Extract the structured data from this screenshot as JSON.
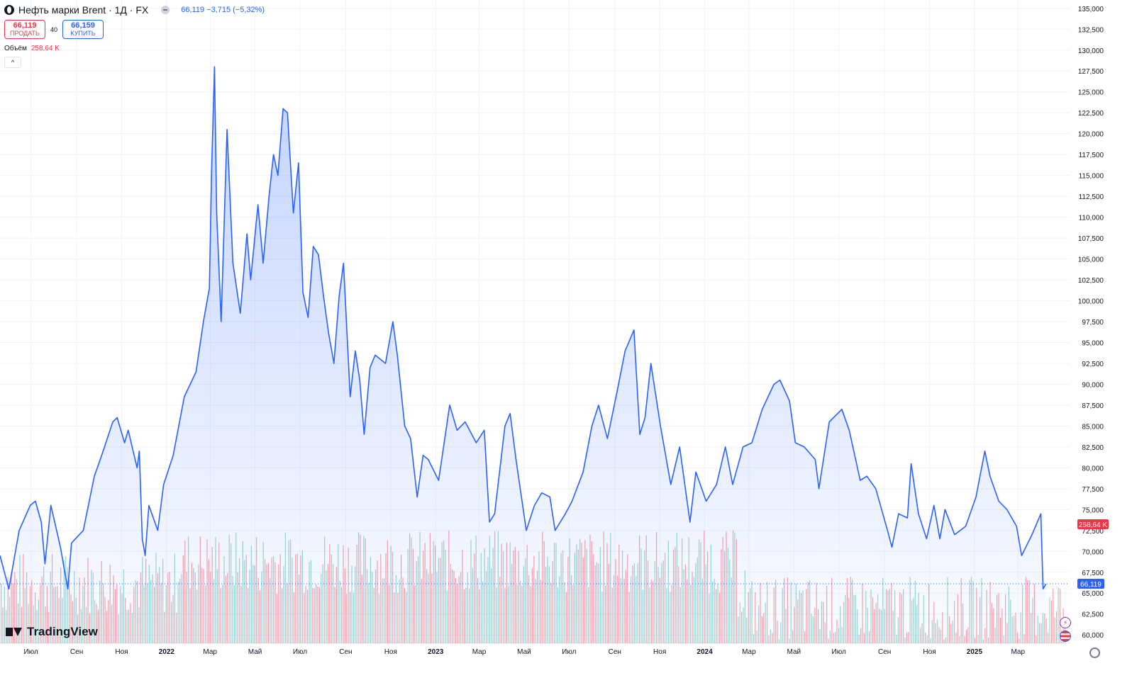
{
  "header": {
    "title": "Нефть марки Brent · 1Д · FX",
    "last": "66,119",
    "change": "−3,715 (−5,32%)",
    "sell_price": "66,119",
    "sell_label": "ПРОДАТЬ",
    "buy_price": "66,159",
    "buy_label": "КУПИТЬ",
    "spread": "40",
    "volume_label": "Объём",
    "volume_value": "258,64 K"
  },
  "brand": {
    "name": "TradingView"
  },
  "colors": {
    "line": "#2962ff",
    "vol_up": "#26a69a",
    "vol_down": "#f23645"
  },
  "icons": {
    "flash": "lightning-icon",
    "flag": "us-flag-icon",
    "settings": "gear-icon",
    "collapse": "chevron-up-icon"
  },
  "chart_data": {
    "type": "area",
    "ylim": [
      59000,
      136000
    ],
    "y_ticks": [
      "60,000",
      "62,500",
      "65,000",
      "67,500",
      "70,000",
      "72,500",
      "75,000",
      "77,500",
      "80,000",
      "82,500",
      "85,000",
      "87,500",
      "90,000",
      "92,500",
      "95,000",
      "97,500",
      "100,000",
      "102,500",
      "105,000",
      "107,500",
      "110,000",
      "112,500",
      "115,000",
      "117,500",
      "120,000",
      "122,500",
      "125,000",
      "127,500",
      "130,000",
      "132,500",
      "135,000"
    ],
    "y_tick_values": [
      60000,
      62500,
      65000,
      67500,
      70000,
      72500,
      75000,
      77500,
      80000,
      82500,
      85000,
      87500,
      90000,
      92500,
      95000,
      97500,
      100000,
      102500,
      105000,
      107500,
      110000,
      112500,
      115000,
      117500,
      120000,
      122500,
      125000,
      127500,
      130000,
      132500,
      135000
    ],
    "x_ticks": [
      "Июл",
      "Сен",
      "Ноя",
      "2022",
      "Мар",
      "Май",
      "Июл",
      "Сен",
      "Ноя",
      "2023",
      "Мар",
      "Май",
      "Июл",
      "Сен",
      "Ноя",
      "2024",
      "Мар",
      "Май",
      "Июл",
      "Сен",
      "Ноя",
      "2025",
      "Мар"
    ],
    "x_tick_dates": [
      "2021-07-01",
      "2021-09-01",
      "2021-11-01",
      "2022-01-01",
      "2022-03-01",
      "2022-05-01",
      "2022-07-01",
      "2022-09-01",
      "2022-11-01",
      "2023-01-01",
      "2023-03-01",
      "2023-05-01",
      "2023-07-01",
      "2023-09-01",
      "2023-11-01",
      "2024-01-01",
      "2024-03-01",
      "2024-05-01",
      "2024-07-01",
      "2024-09-01",
      "2024-11-01",
      "2025-01-01",
      "2025-03-01"
    ],
    "x_range": [
      "2021-05-20",
      "2025-05-10"
    ],
    "last_label": "66,119",
    "volume_label": "258,64 K",
    "series": [
      {
        "values": [
          [
            "2021-05-20",
            69500
          ],
          [
            "2021-06-01",
            65500
          ],
          [
            "2021-06-15",
            72500
          ],
          [
            "2021-06-30",
            75500
          ],
          [
            "2021-07-07",
            76000
          ],
          [
            "2021-07-15",
            73500
          ],
          [
            "2021-07-20",
            68500
          ],
          [
            "2021-07-28",
            75500
          ],
          [
            "2021-08-10",
            70500
          ],
          [
            "2021-08-20",
            65500
          ],
          [
            "2021-08-25",
            71000
          ],
          [
            "2021-09-10",
            72500
          ],
          [
            "2021-09-25",
            79000
          ],
          [
            "2021-10-05",
            81500
          ],
          [
            "2021-10-20",
            85500
          ],
          [
            "2021-10-26",
            86000
          ],
          [
            "2021-11-05",
            83000
          ],
          [
            "2021-11-10",
            84500
          ],
          [
            "2021-11-22",
            80000
          ],
          [
            "2021-11-25",
            82000
          ],
          [
            "2021-11-29",
            71500
          ],
          [
            "2021-12-03",
            69500
          ],
          [
            "2021-12-08",
            75500
          ],
          [
            "2021-12-20",
            72500
          ],
          [
            "2021-12-28",
            78000
          ],
          [
            "2022-01-10",
            81500
          ],
          [
            "2022-01-25",
            88500
          ],
          [
            "2022-02-10",
            91500
          ],
          [
            "2022-02-20",
            97500
          ],
          [
            "2022-02-28",
            101500
          ],
          [
            "2022-03-03",
            115500
          ],
          [
            "2022-03-07",
            128000
          ],
          [
            "2022-03-10",
            110500
          ],
          [
            "2022-03-16",
            97500
          ],
          [
            "2022-03-24",
            120500
          ],
          [
            "2022-04-01",
            104500
          ],
          [
            "2022-04-11",
            98500
          ],
          [
            "2022-04-20",
            108000
          ],
          [
            "2022-04-25",
            102500
          ],
          [
            "2022-05-05",
            111500
          ],
          [
            "2022-05-12",
            104500
          ],
          [
            "2022-05-20",
            112500
          ],
          [
            "2022-05-26",
            117500
          ],
          [
            "2022-06-01",
            115000
          ],
          [
            "2022-06-08",
            123000
          ],
          [
            "2022-06-14",
            122500
          ],
          [
            "2022-06-22",
            110500
          ],
          [
            "2022-06-29",
            116500
          ],
          [
            "2022-07-05",
            101000
          ],
          [
            "2022-07-12",
            98000
          ],
          [
            "2022-07-19",
            106500
          ],
          [
            "2022-07-26",
            105500
          ],
          [
            "2022-08-02",
            100500
          ],
          [
            "2022-08-09",
            96000
          ],
          [
            "2022-08-16",
            92500
          ],
          [
            "2022-08-23",
            100500
          ],
          [
            "2022-08-29",
            104500
          ],
          [
            "2022-09-07",
            88500
          ],
          [
            "2022-09-14",
            94000
          ],
          [
            "2022-09-20",
            90500
          ],
          [
            "2022-09-26",
            84000
          ],
          [
            "2022-10-04",
            92000
          ],
          [
            "2022-10-11",
            93500
          ],
          [
            "2022-10-25",
            92500
          ],
          [
            "2022-11-04",
            97500
          ],
          [
            "2022-11-10",
            93500
          ],
          [
            "2022-11-20",
            85000
          ],
          [
            "2022-11-28",
            83500
          ],
          [
            "2022-12-07",
            76500
          ],
          [
            "2022-12-15",
            81500
          ],
          [
            "2022-12-22",
            81000
          ],
          [
            "2023-01-05",
            78500
          ],
          [
            "2023-01-20",
            87500
          ],
          [
            "2023-01-30",
            84500
          ],
          [
            "2023-02-10",
            85500
          ],
          [
            "2023-02-25",
            83000
          ],
          [
            "2023-03-08",
            84500
          ],
          [
            "2023-03-15",
            73500
          ],
          [
            "2023-03-22",
            74500
          ],
          [
            "2023-04-05",
            85000
          ],
          [
            "2023-04-12",
            86500
          ],
          [
            "2023-04-20",
            81000
          ],
          [
            "2023-05-04",
            72500
          ],
          [
            "2023-05-15",
            75500
          ],
          [
            "2023-05-25",
            77000
          ],
          [
            "2023-06-05",
            76500
          ],
          [
            "2023-06-12",
            72500
          ],
          [
            "2023-06-26",
            74500
          ],
          [
            "2023-07-05",
            76000
          ],
          [
            "2023-07-20",
            79500
          ],
          [
            "2023-08-01",
            85000
          ],
          [
            "2023-08-10",
            87500
          ],
          [
            "2023-08-22",
            83500
          ],
          [
            "2023-09-05",
            89500
          ],
          [
            "2023-09-15",
            94000
          ],
          [
            "2023-09-27",
            96500
          ],
          [
            "2023-10-05",
            84000
          ],
          [
            "2023-10-12",
            86000
          ],
          [
            "2023-10-20",
            92500
          ],
          [
            "2023-11-02",
            85000
          ],
          [
            "2023-11-16",
            78000
          ],
          [
            "2023-11-28",
            82500
          ],
          [
            "2023-12-12",
            73500
          ],
          [
            "2023-12-20",
            79500
          ],
          [
            "2024-01-03",
            76000
          ],
          [
            "2024-01-17",
            78000
          ],
          [
            "2024-01-29",
            82500
          ],
          [
            "2024-02-08",
            78000
          ],
          [
            "2024-02-22",
            82500
          ],
          [
            "2024-03-05",
            83000
          ],
          [
            "2024-03-19",
            87000
          ],
          [
            "2024-04-04",
            90000
          ],
          [
            "2024-04-12",
            90500
          ],
          [
            "2024-04-25",
            88000
          ],
          [
            "2024-05-03",
            83000
          ],
          [
            "2024-05-15",
            82500
          ],
          [
            "2024-05-30",
            81000
          ],
          [
            "2024-06-04",
            77500
          ],
          [
            "2024-06-18",
            85500
          ],
          [
            "2024-07-05",
            87000
          ],
          [
            "2024-07-15",
            84500
          ],
          [
            "2024-07-30",
            78500
          ],
          [
            "2024-08-08",
            79000
          ],
          [
            "2024-08-20",
            77500
          ],
          [
            "2024-09-05",
            72500
          ],
          [
            "2024-09-11",
            70500
          ],
          [
            "2024-09-20",
            74500
          ],
          [
            "2024-10-02",
            74000
          ],
          [
            "2024-10-07",
            80500
          ],
          [
            "2024-10-17",
            74500
          ],
          [
            "2024-10-28",
            71500
          ],
          [
            "2024-11-07",
            75500
          ],
          [
            "2024-11-15",
            71500
          ],
          [
            "2024-11-22",
            75000
          ],
          [
            "2024-12-05",
            72000
          ],
          [
            "2024-12-20",
            73000
          ],
          [
            "2025-01-03",
            76500
          ],
          [
            "2025-01-15",
            82000
          ],
          [
            "2025-01-22",
            79000
          ],
          [
            "2025-02-03",
            76000
          ],
          [
            "2025-02-14",
            75000
          ],
          [
            "2025-02-27",
            73000
          ],
          [
            "2025-03-06",
            69500
          ],
          [
            "2025-03-20",
            72000
          ],
          [
            "2025-04-01",
            74500
          ],
          [
            "2025-04-04",
            65500
          ],
          [
            "2025-04-08",
            66119
          ]
        ]
      }
    ]
  }
}
